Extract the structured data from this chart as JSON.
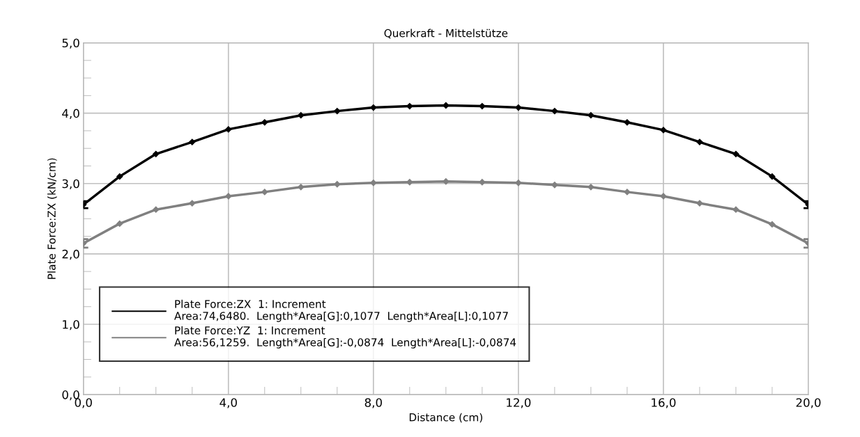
{
  "chart_data": {
    "type": "line",
    "title": "Querkraft - Mittelstütze",
    "xlabel": "Distance (cm)",
    "ylabel": "Plate Force:ZX (kN/cm)",
    "x": [
      0,
      1,
      2,
      3,
      4,
      5,
      6,
      7,
      8,
      9,
      10,
      11,
      12,
      13,
      14,
      15,
      16,
      17,
      18,
      19,
      20
    ],
    "series": [
      {
        "name": "Plate Force:ZX  1: Increment\nArea:74,6480.  Length*Area[G]:0,1077  Length*Area[L]:0,1077",
        "color": "#000000",
        "values": [
          2.7,
          3.1,
          3.42,
          3.59,
          3.77,
          3.87,
          3.97,
          4.03,
          4.08,
          4.1,
          4.11,
          4.1,
          4.08,
          4.03,
          3.97,
          3.87,
          3.76,
          3.59,
          3.42,
          3.1,
          2.7
        ],
        "errors": [
          0.05,
          null,
          null,
          null,
          null,
          null,
          null,
          null,
          null,
          null,
          null,
          null,
          null,
          null,
          null,
          null,
          null,
          null,
          null,
          null,
          0.05
        ]
      },
      {
        "name": "Plate Force:YZ  1: Increment\nArea:56,1259.  Length*Area[G]:-0,0874  Length*Area[L]:-0,0874",
        "color": "#808080",
        "values": [
          2.15,
          2.43,
          2.63,
          2.72,
          2.82,
          2.88,
          2.95,
          2.99,
          3.01,
          3.02,
          3.03,
          3.02,
          3.01,
          2.98,
          2.95,
          2.88,
          2.82,
          2.72,
          2.63,
          2.42,
          2.15
        ],
        "errors": [
          0.06,
          null,
          null,
          null,
          null,
          null,
          null,
          null,
          null,
          null,
          null,
          null,
          null,
          null,
          null,
          null,
          null,
          null,
          null,
          null,
          0.06
        ]
      }
    ],
    "xlim": [
      0,
      20
    ],
    "xticks": [
      {
        "value": 0,
        "label": "0,0"
      },
      {
        "value": 4,
        "label": "4,0"
      },
      {
        "value": 8,
        "label": "8,0"
      },
      {
        "value": 12,
        "label": "12,0"
      },
      {
        "value": 16,
        "label": "16,0"
      },
      {
        "value": 20,
        "label": "20,0"
      }
    ],
    "ylim": [
      0,
      5
    ],
    "yticks": [
      {
        "value": 0,
        "label": "0,0"
      },
      {
        "value": 1,
        "label": "1,0"
      },
      {
        "value": 2,
        "label": "2,0"
      },
      {
        "value": 3,
        "label": "3,0"
      },
      {
        "value": 4,
        "label": "4,0"
      },
      {
        "value": 5,
        "label": "5,0"
      }
    ],
    "grid": true,
    "legend": "bottom left",
    "marker": "diamond",
    "line_style": "solid"
  }
}
